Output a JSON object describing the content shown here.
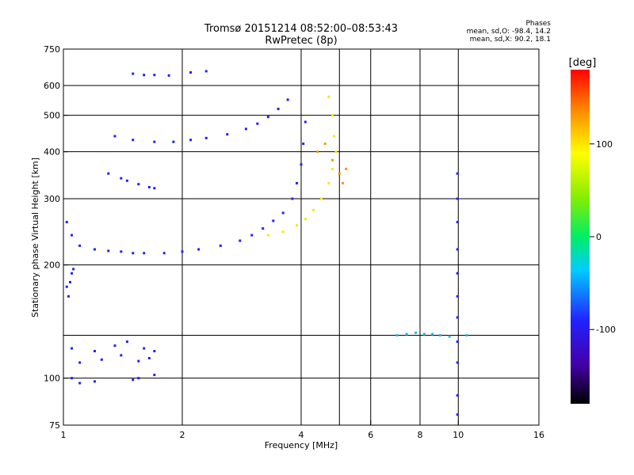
{
  "chart_data": {
    "type": "scatter",
    "title": "Tromsø 20151214 08:52:00–08:53:43",
    "subtitle": "RwPretec (8p)",
    "xlabel": "Frequency [MHz]",
    "ylabel": "Stationary phase Virtual Height [km]",
    "x_scale": "log",
    "y_scale": "log",
    "xlim": [
      1,
      16
    ],
    "ylim": [
      75,
      750
    ],
    "x_ticks": [
      1,
      2,
      4,
      6,
      8,
      10,
      16
    ],
    "x_tick_labels": [
      "1",
      "2",
      "4",
      "6",
      "8",
      "10",
      "16"
    ],
    "y_ticks": [
      75,
      100,
      200,
      300,
      400,
      500,
      600,
      750
    ],
    "y_tick_labels": [
      "75",
      "100",
      "200",
      "300",
      "400",
      "500",
      "600",
      "750"
    ],
    "x_grid": [
      2,
      4,
      5,
      6,
      8,
      10
    ],
    "y_grid": [
      100,
      130,
      200,
      300,
      400,
      500,
      600
    ],
    "grid": true,
    "stats": {
      "heading": "Phases",
      "line_o": "mean, sd,O: -98.4, 14.2",
      "line_x": "mean, sd,X:  90.2, 18.1"
    },
    "colorbar": {
      "label": "[deg]",
      "range": [
        -180,
        180
      ],
      "ticks": [
        -100,
        0,
        100
      ],
      "tick_labels": [
        "-100",
        "0",
        "100"
      ]
    },
    "series": [
      {
        "trace": "o_lower",
        "color": "#2222ee",
        "points": [
          [
            1.05,
            100
          ],
          [
            1.1,
            97
          ],
          [
            1.2,
            98
          ],
          [
            1.5,
            99
          ],
          [
            1.55,
            100
          ],
          [
            1.7,
            102
          ],
          [
            1.05,
            120
          ],
          [
            1.2,
            118
          ],
          [
            1.35,
            122
          ],
          [
            1.45,
            125
          ],
          [
            1.6,
            120
          ],
          [
            1.7,
            118
          ],
          [
            1.1,
            110
          ],
          [
            1.25,
            112
          ],
          [
            1.4,
            115
          ],
          [
            1.55,
            111
          ],
          [
            1.65,
            113
          ]
        ]
      },
      {
        "trace": "e_layer",
        "color": "#2222ee",
        "points": [
          [
            1.02,
            175
          ],
          [
            1.04,
            180
          ],
          [
            1.05,
            190
          ],
          [
            1.06,
            195
          ],
          [
            1.03,
            165
          ]
        ]
      },
      {
        "trace": "o_f",
        "color": "#2222ee",
        "points": [
          [
            1.02,
            260
          ],
          [
            1.05,
            240
          ],
          [
            1.1,
            225
          ],
          [
            1.2,
            220
          ],
          [
            1.3,
            218
          ],
          [
            1.4,
            217
          ],
          [
            1.5,
            215
          ],
          [
            1.6,
            215
          ],
          [
            1.8,
            215
          ],
          [
            2.0,
            217
          ],
          [
            2.2,
            220
          ],
          [
            2.5,
            225
          ],
          [
            2.8,
            232
          ],
          [
            3.0,
            240
          ],
          [
            3.2,
            250
          ],
          [
            3.4,
            262
          ],
          [
            3.6,
            275
          ],
          [
            3.8,
            300
          ],
          [
            3.9,
            330
          ],
          [
            4.0,
            370
          ],
          [
            4.05,
            420
          ],
          [
            4.1,
            480
          ]
        ]
      },
      {
        "trace": "o_upper",
        "color": "#2222ee",
        "points": [
          [
            1.35,
            440
          ],
          [
            1.5,
            430
          ],
          [
            1.7,
            425
          ],
          [
            1.9,
            425
          ],
          [
            2.1,
            430
          ],
          [
            2.3,
            435
          ],
          [
            2.6,
            445
          ],
          [
            2.9,
            460
          ],
          [
            3.1,
            475
          ],
          [
            3.3,
            495
          ],
          [
            3.5,
            520
          ],
          [
            3.7,
            550
          ]
        ]
      },
      {
        "trace": "o_multi",
        "color": "#2222ee",
        "points": [
          [
            1.45,
            335
          ],
          [
            1.55,
            328
          ],
          [
            1.65,
            322
          ],
          [
            1.7,
            320
          ],
          [
            1.3,
            350
          ],
          [
            1.4,
            340
          ]
        ]
      },
      {
        "trace": "o_top",
        "color": "#2222ee",
        "points": [
          [
            1.5,
            645
          ],
          [
            1.6,
            640
          ],
          [
            1.7,
            640
          ],
          [
            1.85,
            638
          ],
          [
            2.1,
            650
          ],
          [
            2.3,
            655
          ]
        ]
      },
      {
        "trace": "x_f",
        "color": "#eeee11",
        "points": [
          [
            3.3,
            240
          ],
          [
            3.6,
            245
          ],
          [
            3.9,
            255
          ],
          [
            4.1,
            265
          ],
          [
            4.3,
            280
          ],
          [
            4.5,
            300
          ],
          [
            4.7,
            330
          ],
          [
            4.8,
            360
          ],
          [
            4.9,
            400
          ],
          [
            4.85,
            440
          ],
          [
            4.8,
            500
          ],
          [
            4.7,
            560
          ]
        ]
      },
      {
        "trace": "x_upper",
        "color": "#ee9911",
        "points": [
          [
            4.4,
            400
          ],
          [
            4.6,
            420
          ],
          [
            4.8,
            380
          ],
          [
            5.0,
            350
          ],
          [
            5.1,
            330
          ],
          [
            5.2,
            360
          ]
        ]
      },
      {
        "trace": "interference_10mhz",
        "color": "#2222ee",
        "points": [
          [
            9.95,
            350
          ],
          [
            9.95,
            300
          ],
          [
            9.95,
            260
          ],
          [
            9.95,
            220
          ],
          [
            9.95,
            190
          ],
          [
            9.95,
            165
          ],
          [
            9.95,
            145
          ],
          [
            9.95,
            125
          ],
          [
            9.95,
            110
          ],
          [
            9.95,
            90
          ],
          [
            9.95,
            80
          ]
        ]
      },
      {
        "trace": "sporadic_130km",
        "color": "#22bbee",
        "points": [
          [
            7.0,
            130
          ],
          [
            7.4,
            131
          ],
          [
            7.8,
            132
          ],
          [
            8.2,
            131
          ],
          [
            8.6,
            131
          ],
          [
            9.0,
            130
          ],
          [
            9.5,
            129
          ],
          [
            10.5,
            130
          ]
        ]
      }
    ]
  }
}
